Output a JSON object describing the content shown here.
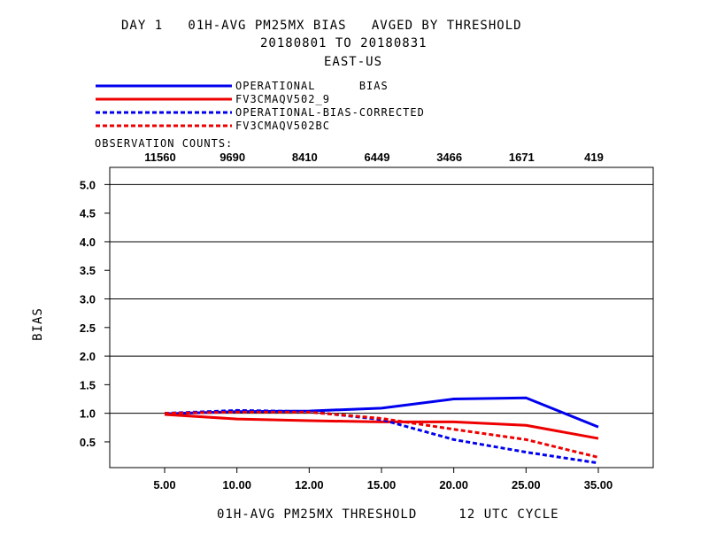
{
  "title": {
    "line1": "DAY 1   01H-AVG PM25MX BIAS   AVGED BY THRESHOLD",
    "line2": "20180801 TO 20180831",
    "line3": "EAST-US"
  },
  "observation_counts_label": "OBSERVATION COUNTS:",
  "observation_counts": [
    "11560",
    "9690",
    "8410",
    "6449",
    "3466",
    "1671",
    "419"
  ],
  "xlabel": "01H-AVG PM25MX THRESHOLD     12 UTC CYCLE",
  "ylabel": "BIAS",
  "legend": [
    {
      "label": "OPERATIONAL      BIAS",
      "color": "#0000ee",
      "dash": "solid"
    },
    {
      "label": "FV3CMAQV502_9",
      "color": "#ee0000",
      "dash": "solid"
    },
    {
      "label": "OPERATIONAL-BIAS-CORRECTED",
      "color": "#0000ee",
      "dash": "dashed"
    },
    {
      "label": "FV3CMAQV502BC",
      "color": "#ee0000",
      "dash": "dashed"
    }
  ],
  "chart_data": {
    "type": "line",
    "title": "DAY 1   01H-AVG PM25MX BIAS   AVGED BY THRESHOLD",
    "xlabel": "01H-AVG PM25MX THRESHOLD     12 UTC CYCLE",
    "ylabel": "BIAS",
    "categories": [
      "5.00",
      "10.00",
      "12.00",
      "15.00",
      "20.00",
      "25.00",
      "35.00"
    ],
    "yticks": [
      "0.5",
      "1.0",
      "1.5",
      "2.0",
      "2.5",
      "3.0",
      "3.5",
      "4.0",
      "4.5",
      "5.0"
    ],
    "ylim": [
      0.05,
      5.3
    ],
    "grid": "horizontal at 1.0, 2.0, 3.0, 4.0, 5.0",
    "legend_position": "top-left above plot",
    "series": [
      {
        "name": "OPERATIONAL      BIAS",
        "color": "#0000ee",
        "dash": "solid",
        "values": [
          0.99,
          1.03,
          1.04,
          1.09,
          1.25,
          1.27,
          0.76
        ]
      },
      {
        "name": "FV3CMAQV502_9",
        "color": "#ee0000",
        "dash": "solid",
        "values": [
          0.98,
          0.9,
          0.87,
          0.85,
          0.85,
          0.79,
          0.56
        ]
      },
      {
        "name": "OPERATIONAL-BIAS-CORRECTED",
        "color": "#0000ee",
        "dash": "dashed",
        "values": [
          1.0,
          1.05,
          1.03,
          0.89,
          0.54,
          0.32,
          0.13
        ]
      },
      {
        "name": "FV3CMAQV502BC",
        "color": "#ee0000",
        "dash": "dashed",
        "values": [
          1.0,
          1.02,
          1.02,
          0.91,
          0.72,
          0.54,
          0.23
        ]
      }
    ]
  }
}
